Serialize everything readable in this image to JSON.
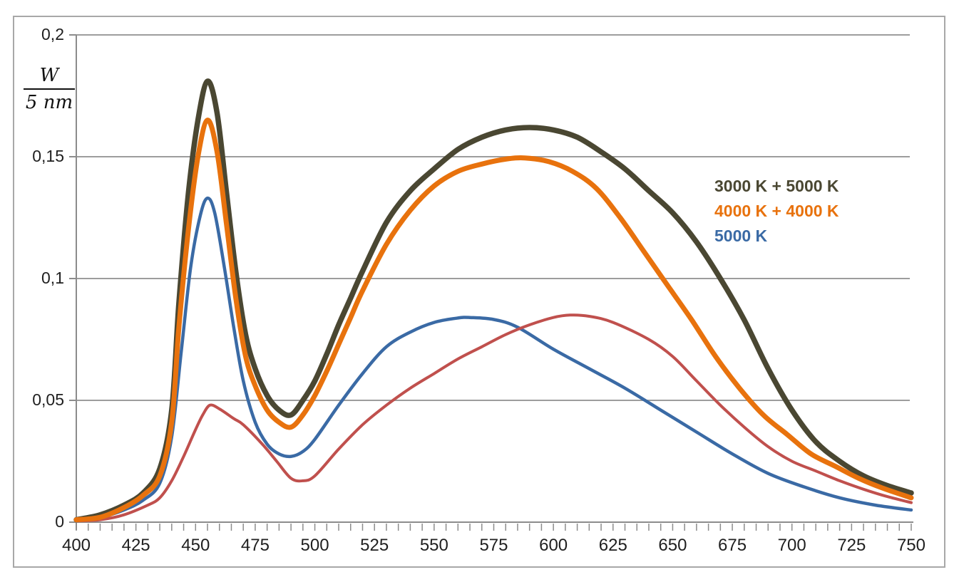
{
  "figure": {
    "background": "#ffffff",
    "border_color": "#a8a8a8"
  },
  "axes": {
    "y_unit": {
      "numerator": "W",
      "denominator": "5 nm"
    },
    "y_tick_labels": [
      "0",
      "0,05",
      "0,1",
      "0,15",
      "0,2"
    ],
    "y_tick_values": [
      0,
      0.05,
      0.1,
      0.15,
      0.2
    ],
    "x_tick_labels": [
      "400",
      "425",
      "450",
      "475",
      "500",
      "525",
      "550",
      "575",
      "600",
      "625",
      "650",
      "675",
      "700",
      "725",
      "750"
    ],
    "x_tick_values": [
      400,
      425,
      450,
      475,
      500,
      525,
      550,
      575,
      600,
      625,
      650,
      675,
      700,
      725,
      750
    ],
    "x_minor_tick_step": 5,
    "grid_color": "#9d9d9d",
    "axis_color": "#8c8c8c",
    "label_color": "#1f1f1f"
  },
  "legend": {
    "items": [
      {
        "label": "3000 K + 5000 K",
        "color": "#4a4732"
      },
      {
        "label": "4000 K + 4000 K",
        "color": "#e8720d"
      },
      {
        "label": "5000 K",
        "color": "#3a6aa5"
      }
    ]
  },
  "chart_data": {
    "type": "line",
    "title": "",
    "xlabel": "",
    "ylabel": "W / 5 nm",
    "xlim": [
      400,
      750
    ],
    "ylim": [
      0,
      0.2
    ],
    "grid": "horizontal",
    "legend_position": "upper right",
    "decimal_separator": ",",
    "series": [
      {
        "id": "5000k",
        "name": "5000 K",
        "color": "#3a6aa5",
        "stroke_width": 4.5,
        "points": [
          [
            400,
            0.001
          ],
          [
            410,
            0.002
          ],
          [
            420,
            0.005
          ],
          [
            428,
            0.009
          ],
          [
            435,
            0.016
          ],
          [
            440,
            0.035
          ],
          [
            444,
            0.07
          ],
          [
            448,
            0.105
          ],
          [
            452,
            0.126
          ],
          [
            455,
            0.133
          ],
          [
            458,
            0.127
          ],
          [
            462,
            0.105
          ],
          [
            466,
            0.08
          ],
          [
            470,
            0.058
          ],
          [
            475,
            0.041
          ],
          [
            480,
            0.032
          ],
          [
            485,
            0.028
          ],
          [
            490,
            0.027
          ],
          [
            495,
            0.029
          ],
          [
            500,
            0.034
          ],
          [
            510,
            0.048
          ],
          [
            520,
            0.061
          ],
          [
            530,
            0.072
          ],
          [
            540,
            0.078
          ],
          [
            550,
            0.082
          ],
          [
            560,
            0.0838
          ],
          [
            565,
            0.084
          ],
          [
            575,
            0.0832
          ],
          [
            585,
            0.08
          ],
          [
            600,
            0.071
          ],
          [
            615,
            0.063
          ],
          [
            630,
            0.055
          ],
          [
            645,
            0.046
          ],
          [
            660,
            0.037
          ],
          [
            675,
            0.028
          ],
          [
            690,
            0.02
          ],
          [
            705,
            0.0145
          ],
          [
            720,
            0.01
          ],
          [
            735,
            0.007
          ],
          [
            750,
            0.005
          ]
        ]
      },
      {
        "id": "unlabeled-red",
        "name": "",
        "color": "#c0504d",
        "stroke_width": 4,
        "points": [
          [
            400,
            0.0005
          ],
          [
            410,
            0.001
          ],
          [
            420,
            0.003
          ],
          [
            430,
            0.007
          ],
          [
            435,
            0.01
          ],
          [
            440,
            0.017
          ],
          [
            445,
            0.027
          ],
          [
            450,
            0.038
          ],
          [
            453,
            0.044
          ],
          [
            456,
            0.048
          ],
          [
            460,
            0.0465
          ],
          [
            466,
            0.0425
          ],
          [
            470,
            0.04
          ],
          [
            478,
            0.032
          ],
          [
            484,
            0.025
          ],
          [
            490,
            0.018
          ],
          [
            495,
            0.017
          ],
          [
            500,
            0.019
          ],
          [
            510,
            0.03
          ],
          [
            520,
            0.04
          ],
          [
            530,
            0.048
          ],
          [
            540,
            0.055
          ],
          [
            550,
            0.061
          ],
          [
            560,
            0.067
          ],
          [
            570,
            0.072
          ],
          [
            580,
            0.077
          ],
          [
            590,
            0.081
          ],
          [
            600,
            0.084
          ],
          [
            607,
            0.085
          ],
          [
            615,
            0.0845
          ],
          [
            625,
            0.082
          ],
          [
            640,
            0.075
          ],
          [
            650,
            0.068
          ],
          [
            660,
            0.058
          ],
          [
            670,
            0.048
          ],
          [
            680,
            0.039
          ],
          [
            690,
            0.031
          ],
          [
            700,
            0.025
          ],
          [
            710,
            0.021
          ],
          [
            720,
            0.017
          ],
          [
            730,
            0.0135
          ],
          [
            740,
            0.0105
          ],
          [
            750,
            0.008
          ]
        ]
      },
      {
        "id": "3000k-plus-5000k",
        "name": "3000 K + 5000 K",
        "color": "#4a4732",
        "stroke_width": 7.5,
        "points": [
          [
            400,
            0.001
          ],
          [
            410,
            0.003
          ],
          [
            420,
            0.007
          ],
          [
            428,
            0.012
          ],
          [
            435,
            0.022
          ],
          [
            440,
            0.046
          ],
          [
            443,
            0.09
          ],
          [
            447,
            0.135
          ],
          [
            451,
            0.165
          ],
          [
            455,
            0.181
          ],
          [
            459,
            0.168
          ],
          [
            463,
            0.135
          ],
          [
            467,
            0.102
          ],
          [
            471,
            0.077
          ],
          [
            475,
            0.063
          ],
          [
            480,
            0.052
          ],
          [
            485,
            0.046
          ],
          [
            490,
            0.044
          ],
          [
            495,
            0.05
          ],
          [
            500,
            0.058
          ],
          [
            505,
            0.069
          ],
          [
            510,
            0.081
          ],
          [
            515,
            0.092
          ],
          [
            520,
            0.103
          ],
          [
            530,
            0.123
          ],
          [
            540,
            0.136
          ],
          [
            550,
            0.145
          ],
          [
            560,
            0.153
          ],
          [
            570,
            0.158
          ],
          [
            580,
            0.161
          ],
          [
            590,
            0.162
          ],
          [
            600,
            0.161
          ],
          [
            610,
            0.158
          ],
          [
            620,
            0.152
          ],
          [
            630,
            0.145
          ],
          [
            640,
            0.136
          ],
          [
            650,
            0.127
          ],
          [
            660,
            0.115
          ],
          [
            670,
            0.1
          ],
          [
            680,
            0.083
          ],
          [
            690,
            0.063
          ],
          [
            700,
            0.046
          ],
          [
            710,
            0.033
          ],
          [
            720,
            0.025
          ],
          [
            730,
            0.019
          ],
          [
            740,
            0.015
          ],
          [
            750,
            0.012
          ]
        ]
      },
      {
        "id": "4000k-plus-4000k",
        "name": "4000 K + 4000 K",
        "color": "#e8720d",
        "stroke_width": 7,
        "points": [
          [
            400,
            0.001
          ],
          [
            410,
            0.002
          ],
          [
            420,
            0.006
          ],
          [
            428,
            0.011
          ],
          [
            435,
            0.019
          ],
          [
            440,
            0.041
          ],
          [
            443,
            0.08
          ],
          [
            447,
            0.12
          ],
          [
            451,
            0.15
          ],
          [
            455,
            0.165
          ],
          [
            459,
            0.152
          ],
          [
            463,
            0.122
          ],
          [
            467,
            0.091
          ],
          [
            471,
            0.068
          ],
          [
            475,
            0.056
          ],
          [
            480,
            0.046
          ],
          [
            485,
            0.041
          ],
          [
            490,
            0.039
          ],
          [
            495,
            0.044
          ],
          [
            500,
            0.052
          ],
          [
            505,
            0.062
          ],
          [
            510,
            0.073
          ],
          [
            515,
            0.084
          ],
          [
            520,
            0.095
          ],
          [
            530,
            0.114
          ],
          [
            540,
            0.128
          ],
          [
            550,
            0.138
          ],
          [
            560,
            0.144
          ],
          [
            570,
            0.147
          ],
          [
            580,
            0.149
          ],
          [
            588,
            0.1495
          ],
          [
            598,
            0.148
          ],
          [
            608,
            0.144
          ],
          [
            618,
            0.137
          ],
          [
            628,
            0.125
          ],
          [
            638,
            0.111
          ],
          [
            648,
            0.097
          ],
          [
            658,
            0.083
          ],
          [
            668,
            0.068
          ],
          [
            678,
            0.055
          ],
          [
            688,
            0.044
          ],
          [
            698,
            0.036
          ],
          [
            708,
            0.028
          ],
          [
            718,
            0.023
          ],
          [
            728,
            0.018
          ],
          [
            738,
            0.014
          ],
          [
            750,
            0.01
          ]
        ]
      }
    ]
  }
}
